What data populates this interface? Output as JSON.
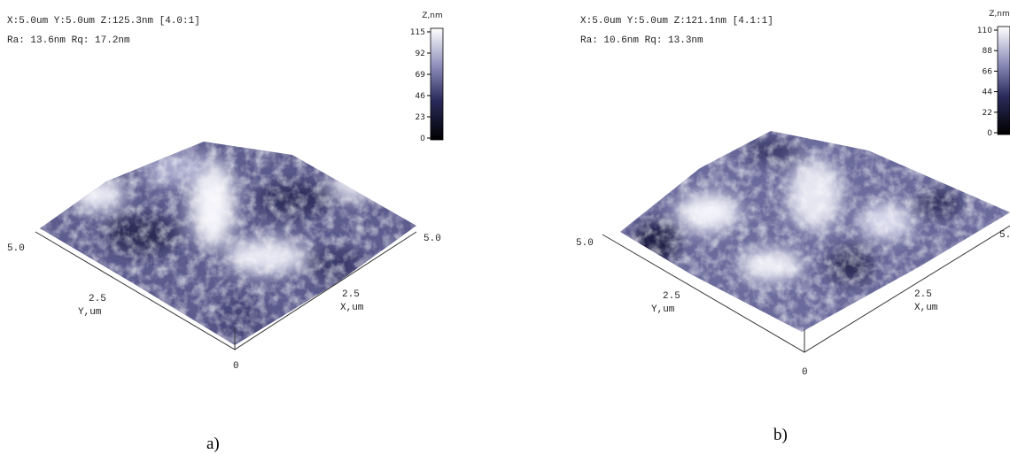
{
  "panels": [
    {
      "header_line1": "X:5.0um  Y:5.0um  Z:125.3nm [4.0:1]",
      "header_line2": "Ra: 13.6nm  Rq: 17.2nm",
      "colorbar": {
        "title": "Z,nm",
        "ticks": [
          115,
          92,
          69,
          46,
          23,
          0
        ]
      },
      "axes": {
        "y_end": "5.0",
        "y_mid": "2.5",
        "y_label": "Y,um",
        "x_end": "5.0",
        "x_mid": "2.5",
        "x_label": "X,um",
        "origin": "0"
      },
      "label": "a)"
    },
    {
      "header_line1": "X:5.0um  Y:5.0um  Z:121.1nm [4.1:1]",
      "header_line2": "Ra: 10.6nm  Rq: 13.3nm",
      "colorbar": {
        "title": "Z,nm",
        "ticks": [
          110,
          88,
          66,
          44,
          22,
          0
        ]
      },
      "axes": {
        "y_end": "5.0",
        "y_mid": "2.5",
        "y_label": "Y,um",
        "x_end": "5.",
        "x_mid": "2.5",
        "x_label": "X,um",
        "origin": "0"
      },
      "label": "b)"
    }
  ]
}
